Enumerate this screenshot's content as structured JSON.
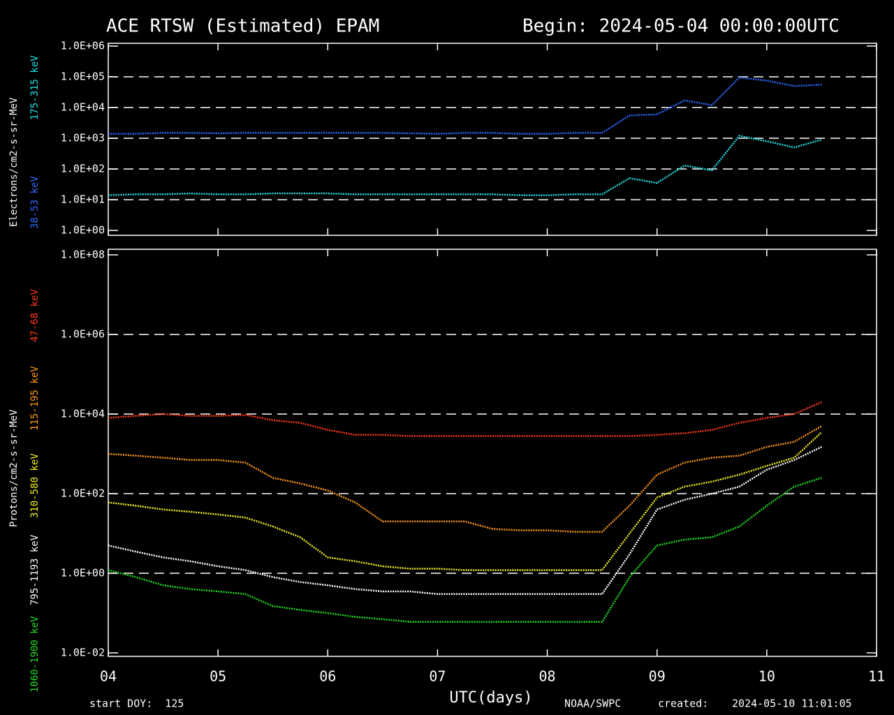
{
  "header": {
    "title": "ACE RTSW (Estimated) EPAM",
    "begin": "Begin: 2024-05-04 00:00:00UTC"
  },
  "footer": {
    "start": "start DOY:  125",
    "xlabel": "UTC(days)",
    "source": "NOAA/SWPC",
    "created_label": "created:",
    "created": "2024-05-10 11:01:05"
  },
  "chart_data": [
    {
      "type": "line",
      "ylabel": "Electrons/cm2-s-sr-MeV",
      "log_y": true,
      "grid": true,
      "xlim": [
        4,
        11
      ],
      "xticks": [
        4,
        5,
        6,
        7,
        8,
        9,
        10,
        11
      ],
      "ylim": [
        1,
        1000000
      ],
      "yticks": [
        {
          "value": 1,
          "label": "1.0E+00"
        },
        {
          "value": 10,
          "label": "1.0E+01"
        },
        {
          "value": 100,
          "label": "1.0E+02"
        },
        {
          "value": 1000,
          "label": "1.0E+03"
        },
        {
          "value": 10000,
          "label": "1.0E+04"
        },
        {
          "value": 100000,
          "label": "1.0E+05"
        },
        {
          "value": 1000000,
          "label": "1.0E+06"
        }
      ],
      "x": [
        4,
        4.25,
        4.5,
        4.75,
        5,
        5.25,
        5.5,
        5.75,
        6,
        6.25,
        6.5,
        6.75,
        7,
        7.25,
        7.5,
        7.75,
        8,
        8.25,
        8.5,
        8.75,
        9,
        9.25,
        9.5,
        9.75,
        10,
        10.25,
        10.5
      ],
      "series": [
        {
          "name": "38-53 keV",
          "color": "#2f6bff",
          "values": [
            1400,
            1400,
            1500,
            1500,
            1450,
            1500,
            1500,
            1500,
            1500,
            1500,
            1500,
            1450,
            1400,
            1500,
            1500,
            1400,
            1400,
            1500,
            1500,
            5500,
            6000,
            17000,
            12000,
            95000,
            75000,
            50000,
            55000
          ]
        },
        {
          "name": "175-315 keV",
          "color": "#22e0e8",
          "values": [
            14,
            15,
            15,
            16,
            15,
            15,
            16,
            16,
            16,
            15,
            15,
            15,
            15,
            15,
            15,
            14,
            14,
            15,
            15,
            50,
            35,
            130,
            90,
            1200,
            800,
            500,
            900
          ]
        }
      ]
    },
    {
      "type": "line",
      "ylabel": "Protons/cm2-s-sr-MeV",
      "log_y": true,
      "grid": true,
      "xlim": [
        4,
        11
      ],
      "xticks": [
        {
          "value": 4,
          "label": "04"
        },
        {
          "value": 5,
          "label": "05"
        },
        {
          "value": 6,
          "label": "06"
        },
        {
          "value": 7,
          "label": "07"
        },
        {
          "value": 8,
          "label": "08"
        },
        {
          "value": 9,
          "label": "09"
        },
        {
          "value": 10,
          "label": "10"
        },
        {
          "value": 11,
          "label": "11"
        }
      ],
      "ylim": [
        0.01,
        100000000
      ],
      "yticks": [
        {
          "value": 0.01,
          "label": "1.0E-02"
        },
        {
          "value": 1,
          "label": "1.0E+00"
        },
        {
          "value": 100,
          "label": "1.0E+02"
        },
        {
          "value": 10000,
          "label": "1.0E+04"
        },
        {
          "value": 1000000,
          "label": "1.0E+06"
        },
        {
          "value": 100000000,
          "label": "1.0E+08"
        }
      ],
      "x": [
        4,
        4.25,
        4.5,
        4.75,
        5,
        5.25,
        5.5,
        5.75,
        6,
        6.25,
        6.5,
        6.75,
        7,
        7.25,
        7.5,
        7.75,
        8,
        8.25,
        8.5,
        8.75,
        9,
        9.25,
        9.5,
        9.75,
        10,
        10.25,
        10.5
      ],
      "series": [
        {
          "name": "47-68 keV",
          "color": "#ff3a1a",
          "values": [
            8000,
            9000,
            10000,
            9000,
            9000,
            9500,
            7000,
            6000,
            4000,
            3000,
            3000,
            2800,
            2800,
            2800,
            2800,
            2800,
            2800,
            2800,
            2800,
            2800,
            3000,
            3300,
            4000,
            6000,
            8000,
            10000,
            20000
          ]
        },
        {
          "name": "115-195 keV",
          "color": "#ff9a1a",
          "values": [
            1000,
            900,
            800,
            700,
            700,
            600,
            250,
            180,
            120,
            60,
            20,
            20,
            20,
            20,
            13,
            12,
            12,
            11,
            11,
            50,
            300,
            600,
            800,
            900,
            1500,
            2000,
            5000
          ]
        },
        {
          "name": "310-580 keV",
          "color": "#f2f020",
          "values": [
            60,
            50,
            40,
            35,
            30,
            25,
            15,
            8,
            2.5,
            2,
            1.5,
            1.3,
            1.3,
            1.2,
            1.2,
            1.2,
            1.2,
            1.2,
            1.2,
            10,
            80,
            150,
            200,
            300,
            500,
            800,
            3500
          ]
        },
        {
          "name": "795-1193 keV",
          "color": "#ffffff",
          "values": [
            5,
            3.5,
            2.5,
            2,
            1.5,
            1.2,
            0.8,
            0.6,
            0.5,
            0.4,
            0.35,
            0.35,
            0.3,
            0.3,
            0.3,
            0.3,
            0.3,
            0.3,
            0.3,
            3,
            40,
            70,
            100,
            150,
            400,
            700,
            1500
          ]
        },
        {
          "name": "1060-1900 keV",
          "color": "#22dd22",
          "values": [
            1.2,
            0.8,
            0.5,
            0.4,
            0.35,
            0.3,
            0.15,
            0.12,
            0.1,
            0.08,
            0.07,
            0.06,
            0.06,
            0.06,
            0.06,
            0.06,
            0.06,
            0.06,
            0.06,
            0.8,
            5,
            7,
            8,
            15,
            50,
            150,
            250
          ]
        }
      ]
    }
  ]
}
